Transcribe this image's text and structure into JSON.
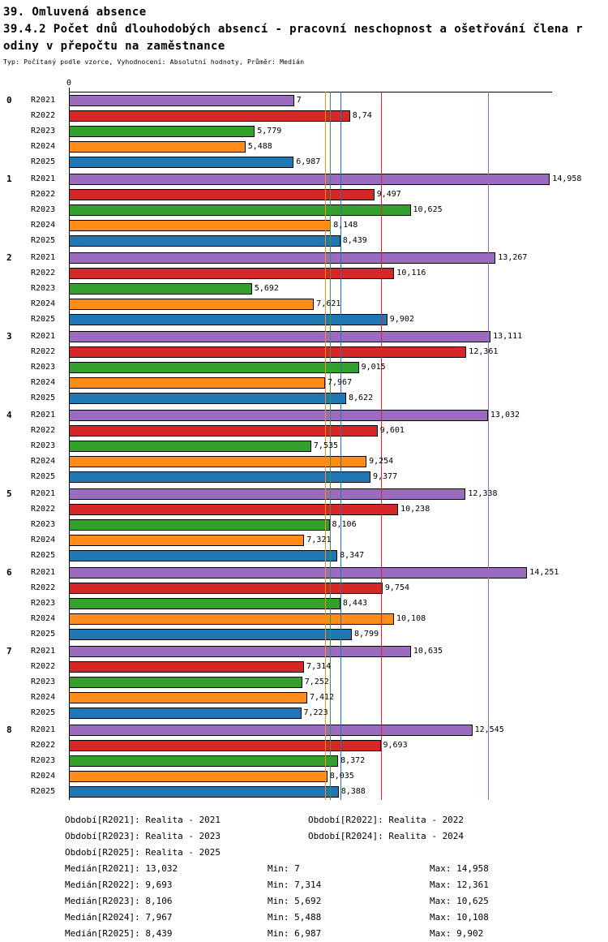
{
  "header": {
    "line1": "39. Omluvená absence",
    "line2": "39.4.2 Počet dnů dlouhodobých absencí - pracovní neschopnost a ošetřování člena r",
    "line3": "odiny v přepočtu na zaměstnance",
    "subtitle": "Typ: Počítaný podle vzorce, Vyhodnocení: Absolutní hodnoty, Průměr: Medián"
  },
  "chart_data": {
    "type": "bar",
    "orientation": "horizontal",
    "title": "39.4.2 Počet dnů dlouhodobých absencí - pracovní neschopnost a ošetřování člena rodiny v přepočtu na zaměstnance",
    "axis": {
      "min": 0,
      "max": 15,
      "tick_label": "0"
    },
    "grid": false,
    "legend_position": "bottom",
    "categories": [
      "0",
      "1",
      "2",
      "3",
      "4",
      "5",
      "6",
      "7",
      "8"
    ],
    "series": [
      {
        "name": "R2021",
        "legend": "Realita - 2021",
        "color": "#9a6bbe",
        "values": [
          7,
          14.958,
          13.267,
          13.111,
          13.032,
          12.338,
          14.251,
          10.635,
          12.545
        ],
        "value_labels": [
          "7",
          "14,958",
          "13,267",
          "13,111",
          "13,032",
          "12,338",
          "14,251",
          "10,635",
          "12,545"
        ],
        "median": 13.032,
        "median_label": "13,032",
        "min_label": "7",
        "max_label": "14,958"
      },
      {
        "name": "R2022",
        "legend": "Realita - 2022",
        "color": "#d62728",
        "values": [
          8.74,
          9.497,
          10.116,
          12.361,
          9.601,
          10.238,
          9.754,
          7.314,
          9.693
        ],
        "value_labels": [
          "8,74",
          "9,497",
          "10,116",
          "12,361",
          "9,601",
          "10,238",
          "9,754",
          "7,314",
          "9,693"
        ],
        "median": 9.693,
        "median_label": "9,693",
        "min_label": "7,314",
        "max_label": "12,361"
      },
      {
        "name": "R2023",
        "legend": "Realita - 2023",
        "color": "#33a02c",
        "values": [
          5.779,
          10.625,
          5.692,
          9.015,
          7.535,
          8.106,
          8.443,
          7.252,
          8.372
        ],
        "value_labels": [
          "5,779",
          "10,625",
          "5,692",
          "9,015",
          "7,535",
          "8,106",
          "8,443",
          "7,252",
          "8,372"
        ],
        "median": 8.106,
        "median_label": "8,106",
        "min_label": "5,692",
        "max_label": "10,625"
      },
      {
        "name": "R2024",
        "legend": "Realita - 2024",
        "color": "#ff8c19",
        "values": [
          5.488,
          8.148,
          7.621,
          7.967,
          9.254,
          7.321,
          10.108,
          7.412,
          8.035
        ],
        "value_labels": [
          "5,488",
          "8,148",
          "7,621",
          "7,967",
          "9,254",
          "7,321",
          "10,108",
          "7,412",
          "8,035"
        ],
        "median": 7.967,
        "median_label": "7,967",
        "min_label": "5,488",
        "max_label": "10,108"
      },
      {
        "name": "R2025",
        "legend": "Realita - 2025",
        "color": "#1f77b4",
        "values": [
          6.987,
          8.439,
          9.902,
          8.622,
          9.377,
          8.347,
          8.799,
          7.223,
          8.388
        ],
        "value_labels": [
          "6,987",
          "8,439",
          "9,902",
          "8,622",
          "9,377",
          "8,347",
          "8,799",
          "7,223",
          "8,388"
        ],
        "median": 8.439,
        "median_label": "8,439",
        "min_label": "6,987",
        "max_label": "9,902"
      }
    ]
  },
  "legend": {
    "period_entries": [
      "Období[R2021]: Realita - 2021",
      "Období[R2022]: Realita - 2022",
      "Období[R2023]: Realita - 2023",
      "Období[R2024]: Realita - 2024",
      "Období[R2025]: Realita - 2025"
    ],
    "stats_rows": [
      {
        "median": "Medián[R2021]: 13,032",
        "min": "Min: 7",
        "max": "Max: 14,958"
      },
      {
        "median": "Medián[R2022]: 9,693",
        "min": "Min: 7,314",
        "max": "Max: 12,361"
      },
      {
        "median": "Medián[R2023]: 8,106",
        "min": "Min: 5,692",
        "max": "Max: 10,625"
      },
      {
        "median": "Medián[R2024]: 7,967",
        "min": "Min: 5,488",
        "max": "Max: 10,108"
      },
      {
        "median": "Medián[R2025]: 8,439",
        "min": "Min: 6,987",
        "max": "Max: 9,902"
      }
    ]
  }
}
